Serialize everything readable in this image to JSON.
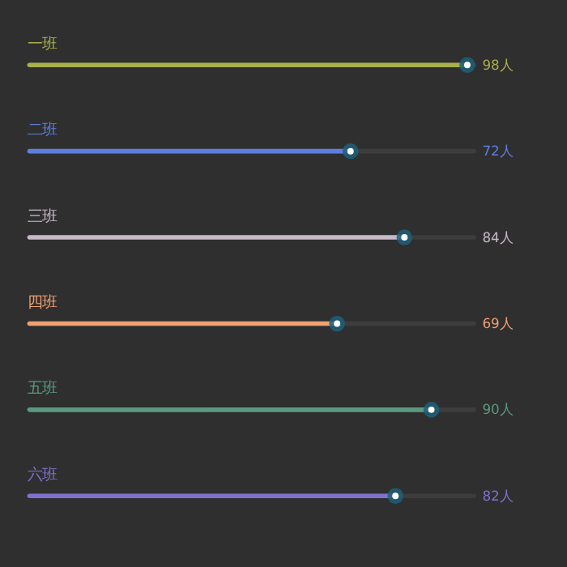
{
  "chart_data": {
    "type": "bar",
    "orientation": "horizontal",
    "categories": [
      "一班",
      "二班",
      "三班",
      "四班",
      "五班",
      "六班"
    ],
    "series": [
      {
        "values": [
          98,
          72,
          84,
          69,
          90,
          82
        ],
        "colors": [
          "#a8b04a",
          "#5f7ee0",
          "#c8b8c8",
          "#f0a070",
          "#5a9a80",
          "#8070d0"
        ],
        "value_labels": [
          "98人",
          "72人",
          "84人",
          "69人",
          "90人",
          "82人"
        ]
      },
      {
        "type": "scatter",
        "values": [
          98,
          72,
          84,
          69,
          90,
          82
        ],
        "color": "#1f5f78",
        "marker": "circle"
      }
    ],
    "xlim": [
      0,
      100
    ],
    "tick_labels": false
  }
}
